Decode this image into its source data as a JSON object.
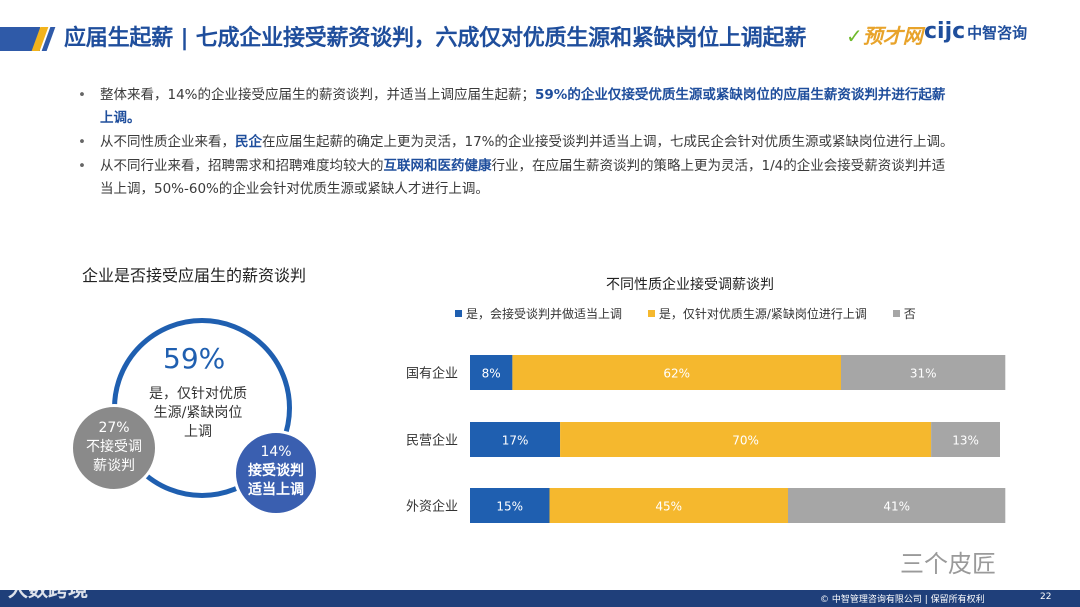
{
  "header": {
    "title": "应届生起薪 | 七成企业接受薪资谈判，六成仅对优质生源和紧缺岗位上调起薪",
    "logo_left": "预才网",
    "logo_right_en": "cijc",
    "logo_right_cn": "中智咨询"
  },
  "bullets": [
    {
      "dot": "•",
      "parts": [
        {
          "t": "整体来看，14%的企业接受应届生的薪资谈判，并适当上调应届生起薪；",
          "hl": false
        },
        {
          "t": "59%的企业仅接受优质生源或紧缺岗位的应届生薪资谈判并进行起薪上调。",
          "hl": true
        }
      ]
    },
    {
      "dot": "•",
      "parts": [
        {
          "t": "从不同性质企业来看，",
          "hl": false
        },
        {
          "t": "民企",
          "hl": true
        },
        {
          "t": "在应届生起薪的确定上更为灵活，17%的企业接受谈判并适当上调，七成民企会针对优质生源或紧缺岗位进行上调。",
          "hl": false
        }
      ]
    },
    {
      "dot": "•",
      "parts": [
        {
          "t": "从不同行业来看，招聘需求和招聘难度均较大的",
          "hl": false
        },
        {
          "t": "互联网和医药健康",
          "hl": true
        },
        {
          "t": "行业，在应届生薪资谈判的策略上更为灵活，1/4的企业会接受薪资谈判并适当上调，50%-60%的企业会针对优质生源或紧缺人才进行上调。",
          "hl": false
        }
      ]
    }
  ],
  "left_chart": {
    "title": "企业是否接受应届生的薪资谈判",
    "main_pct": "59%",
    "main_label": "是，仅针对优质生源/紧缺岗位上调",
    "grey_pct": "27%",
    "grey_label": "不接受调薪谈判",
    "blue_pct": "14%",
    "blue_label": "接受谈判适当上调"
  },
  "chart_data": {
    "type": "bar",
    "orientation": "horizontal",
    "stacked": true,
    "percent_stacked": true,
    "title": "不同性质企业接受调薪谈判",
    "categories": [
      "国有企业",
      "民营企业",
      "外资企业"
    ],
    "series": [
      {
        "name": "是，会接受谈判并做适当上调",
        "color": "#1f5fb0",
        "values": [
          8,
          17,
          15
        ]
      },
      {
        "name": "是，仅针对优质生源/紧缺岗位进行上调",
        "color": "#f5b82e",
        "values": [
          62,
          70,
          45
        ]
      },
      {
        "name": "否",
        "color": "#a6a6a6",
        "values": [
          31,
          13,
          41
        ]
      }
    ],
    "legend_position": "top",
    "xlim": [
      0,
      100
    ],
    "grid": false
  },
  "watermarks": {
    "right": "三个皮匠",
    "left": "大数跨境"
  },
  "footer": {
    "copyright": "© 中智管理咨询有限公司 | 保留所有权利",
    "page": "22"
  }
}
